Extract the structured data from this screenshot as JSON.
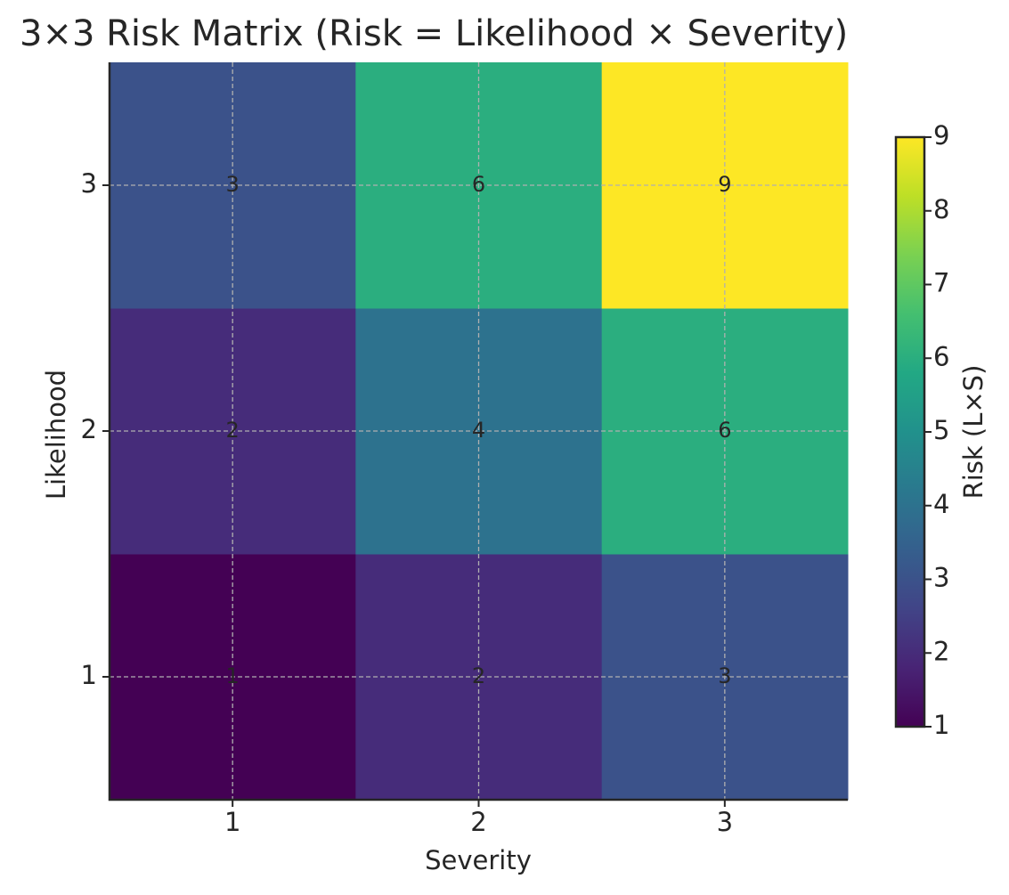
{
  "chart_data": {
    "type": "heatmap",
    "title": "3×3 Risk Matrix (Risk = Likelihood × Severity)",
    "xlabel": "Severity",
    "ylabel": "Likelihood",
    "xlim": [
      0.5,
      3.5
    ],
    "ylim": [
      0.5,
      3.5
    ],
    "xticks": [
      1,
      2,
      3
    ],
    "yticks": [
      1,
      2,
      3
    ],
    "z": [
      [
        1,
        2,
        3
      ],
      [
        2,
        4,
        6
      ],
      [
        3,
        6,
        9
      ]
    ],
    "colormap": "viridis",
    "clim": [
      1,
      9
    ],
    "cticks": [
      1,
      2,
      3,
      4,
      5,
      6,
      7,
      8,
      9
    ],
    "colorbar_label": "Risk (L×S)",
    "grid": true
  }
}
